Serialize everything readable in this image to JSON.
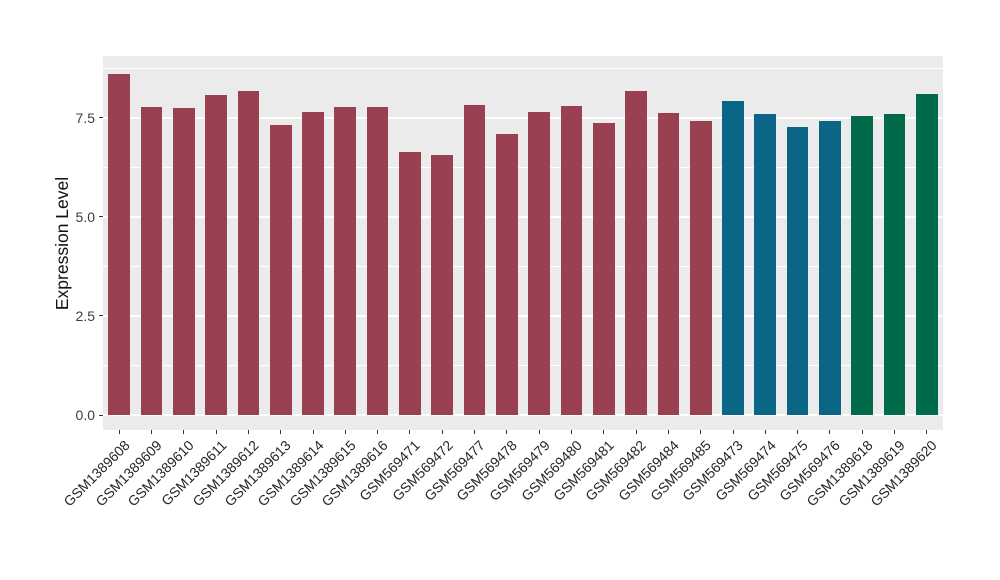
{
  "chart_data": {
    "type": "bar",
    "title": "",
    "xlabel": "",
    "ylabel": "Expression Level",
    "categories": [
      "GSM1389608",
      "GSM1389609",
      "GSM1389610",
      "GSM1389611",
      "GSM1389612",
      "GSM1389613",
      "GSM1389614",
      "GSM1389615",
      "GSM1389616",
      "GSM569471",
      "GSM569472",
      "GSM569477",
      "GSM569478",
      "GSM569479",
      "GSM569480",
      "GSM569481",
      "GSM569482",
      "GSM569484",
      "GSM569485",
      "GSM569473",
      "GSM569474",
      "GSM569475",
      "GSM569476",
      "GSM1389618",
      "GSM1389619",
      "GSM1389620"
    ],
    "values": [
      8.6,
      7.76,
      7.74,
      8.07,
      8.16,
      7.31,
      7.65,
      7.76,
      7.78,
      6.64,
      6.56,
      7.82,
      7.08,
      7.65,
      7.8,
      7.36,
      8.17,
      7.61,
      7.42,
      7.92,
      7.6,
      7.26,
      7.41,
      7.54,
      7.6,
      8.1
    ],
    "bar_color_ids": [
      0,
      0,
      0,
      0,
      0,
      0,
      0,
      0,
      0,
      0,
      0,
      0,
      0,
      0,
      0,
      0,
      0,
      0,
      0,
      1,
      1,
      1,
      1,
      2,
      2,
      2
    ],
    "palette": [
      "#9A4151",
      "#0B6586",
      "#006A4A"
    ],
    "ylim": [
      0,
      9.05
    ],
    "yticks": [
      0,
      2.5,
      5,
      7.5
    ],
    "ytick_labels": [
      "0.0",
      "2.5",
      "5.0",
      "7.5"
    ],
    "yminor_ticks": [
      1.25,
      3.75,
      6.25,
      8.75
    ],
    "x_label_angle": 45,
    "grid": "major+minor horizontal, white on grey panel",
    "legend": "none",
    "colors": {
      "panel_background": "#EBEBEB",
      "gridline": "#FFFFFF",
      "tick_mark": "#333333",
      "axis_text": "#3d3d3d",
      "axis_title": "#111111"
    }
  }
}
